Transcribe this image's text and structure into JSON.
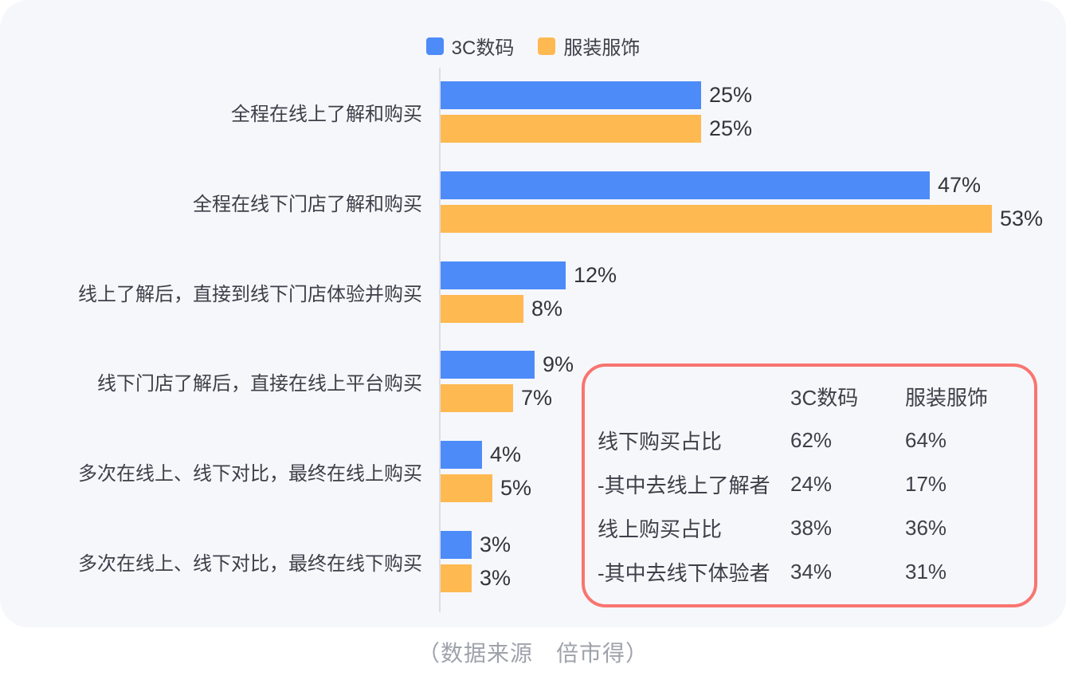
{
  "legend": {
    "items": [
      {
        "label": "3C数码",
        "color": "#4D8BF8"
      },
      {
        "label": "服装服饰",
        "color": "#FFB951"
      }
    ]
  },
  "chart_data": {
    "type": "bar",
    "orientation": "horizontal",
    "title": "",
    "xlabel": "",
    "ylabel": "",
    "xlim": [
      0,
      57
    ],
    "grid": false,
    "legend_position": "top-center",
    "value_suffix": "%",
    "categories": [
      "全程在线上了解和购买",
      "全程在线下门店了解和购买",
      "线上了解后，直接到线下门店体验并购买",
      "线下门店了解后，直接在线上平台购买",
      "多次在线上、线下对比，最终在线上购买",
      "多次在线上、线下对比，最终在线下购买"
    ],
    "series": [
      {
        "name": "3C数码",
        "color": "#4D8BF8",
        "values": [
          25,
          47,
          12,
          9,
          4,
          3
        ]
      },
      {
        "name": "服装服饰",
        "color": "#FFB951",
        "values": [
          25,
          53,
          8,
          7,
          5,
          3
        ]
      }
    ],
    "inset_table": {
      "border_color": "#F8756F",
      "headers": [
        "3C数码",
        "服装服饰"
      ],
      "rows": [
        {
          "label": "线下购买占比",
          "c1": "62%",
          "c2": "64%"
        },
        {
          "label": "-其中去线上了解者",
          "c1": "24%",
          "c2": "17%"
        },
        {
          "label": "线上购买占比",
          "c1": "38%",
          "c2": "36%"
        },
        {
          "label": "-其中去线下体验者",
          "c1": "34%",
          "c2": "31%"
        }
      ]
    }
  },
  "footer": {
    "source_note": "（数据来源　倍市得）"
  },
  "colors": {
    "card_background": "#F6F7FB",
    "axis_line": "#DCDEE6",
    "text_dark": "#3E4049",
    "footer_text": "#9FA2AA",
    "series_blue": "#4D8BF8",
    "series_orange": "#FFB951",
    "inset_border": "#F8756F"
  }
}
